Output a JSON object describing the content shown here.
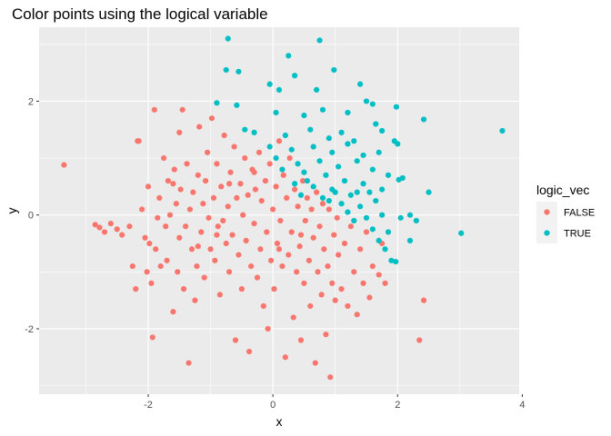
{
  "chart_data": {
    "type": "scatter",
    "title": "Color points using the logical variable",
    "xlabel": "x",
    "ylabel": "y",
    "xlim": [
      -3.75,
      3.95
    ],
    "ylim": [
      -3.15,
      3.3
    ],
    "x_ticks": [
      -2,
      0,
      2,
      4
    ],
    "x_tick_labels": [
      "-2",
      "0",
      "2",
      "4"
    ],
    "y_ticks": [
      -2,
      0,
      2
    ],
    "y_tick_labels": [
      "-2",
      "0",
      "2"
    ],
    "grid": true,
    "legend": {
      "title": "logic_vec",
      "position": "right"
    },
    "colors": {
      "FALSE": "#F8766D",
      "TRUE": "#00BFC4",
      "panel": "#EBEBEB"
    },
    "series": [
      {
        "name": "FALSE",
        "color": "#F8766D",
        "points": [
          [
            -3.35,
            0.88
          ],
          [
            -2.85,
            -0.17
          ],
          [
            -2.78,
            -0.22
          ],
          [
            -2.7,
            -0.3
          ],
          [
            -2.6,
            -0.15
          ],
          [
            -2.5,
            -0.25
          ],
          [
            -2.42,
            -0.35
          ],
          [
            -2.3,
            -0.2
          ],
          [
            -2.25,
            -0.9
          ],
          [
            -2.2,
            -1.3
          ],
          [
            -2.17,
            1.3
          ],
          [
            -2.15,
            1.3
          ],
          [
            -2.1,
            0.1
          ],
          [
            -2.05,
            -0.4
          ],
          [
            -2.02,
            -1.0
          ],
          [
            -2.0,
            0.5
          ],
          [
            -1.98,
            -0.5
          ],
          [
            -1.95,
            -1.2
          ],
          [
            -1.93,
            -2.15
          ],
          [
            -1.9,
            1.85
          ],
          [
            -1.88,
            -0.6
          ],
          [
            -1.85,
            -0.05
          ],
          [
            -1.82,
            0.3
          ],
          [
            -1.8,
            -0.9
          ],
          [
            -1.75,
            1.0
          ],
          [
            -1.72,
            -0.2
          ],
          [
            -1.7,
            -0.8
          ],
          [
            -1.68,
            0.6
          ],
          [
            -1.65,
            0.0
          ],
          [
            -1.6,
            -1.7
          ],
          [
            -1.58,
            0.8
          ],
          [
            -1.55,
            0.2
          ],
          [
            -1.53,
            -1.0
          ],
          [
            -1.5,
            1.45
          ],
          [
            -1.5,
            -0.4
          ],
          [
            -1.48,
            0.45
          ],
          [
            -1.45,
            1.85
          ],
          [
            -1.43,
            -1.3
          ],
          [
            -1.4,
            -0.2
          ],
          [
            -1.38,
            0.9
          ],
          [
            -1.35,
            -2.6
          ],
          [
            -1.33,
            0.1
          ],
          [
            -1.3,
            -0.6
          ],
          [
            -1.28,
            0.4
          ],
          [
            -1.25,
            -1.5
          ],
          [
            -1.22,
            -0.9
          ],
          [
            -1.2,
            0.7
          ],
          [
            -1.18,
            1.55
          ],
          [
            -1.15,
            -0.3
          ],
          [
            -1.12,
            0.2
          ],
          [
            -1.1,
            -1.1
          ],
          [
            -1.08,
            0.6
          ],
          [
            -1.05,
            1.1
          ],
          [
            -1.03,
            -0.05
          ],
          [
            -1.0,
            -0.6
          ],
          [
            -0.98,
            1.7
          ],
          [
            -0.95,
            0.3
          ],
          [
            -0.93,
            -0.8
          ],
          [
            -0.9,
            0.9
          ],
          [
            -0.88,
            -0.2
          ],
          [
            -0.85,
            -1.4
          ],
          [
            -0.83,
            0.5
          ],
          [
            -0.8,
            -0.1
          ],
          [
            -0.78,
            1.4
          ],
          [
            -0.75,
            -0.5
          ],
          [
            -0.72,
            0.15
          ],
          [
            -0.7,
            -1.0
          ],
          [
            -0.68,
            0.75
          ],
          [
            -0.65,
            -0.35
          ],
          [
            -0.62,
            1.2
          ],
          [
            -0.6,
            -2.2
          ],
          [
            -0.58,
            0.3
          ],
          [
            -0.55,
            -0.7
          ],
          [
            -0.52,
            0.55
          ],
          [
            -0.5,
            -1.3
          ],
          [
            -0.48,
            0.0
          ],
          [
            -0.45,
            1.0
          ],
          [
            -0.43,
            -0.45
          ],
          [
            -0.4,
            0.35
          ],
          [
            -0.38,
            -2.4
          ],
          [
            -0.35,
            -0.9
          ],
          [
            -0.33,
            0.8
          ],
          [
            -0.3,
            -0.15
          ],
          [
            -0.28,
            0.45
          ],
          [
            -0.25,
            -1.1
          ],
          [
            -0.22,
            1.1
          ],
          [
            -0.2,
            -0.6
          ],
          [
            -0.18,
            0.25
          ],
          [
            -0.15,
            -1.6
          ],
          [
            -0.12,
            0.6
          ],
          [
            -0.1,
            -0.3
          ],
          [
            -0.08,
            -2.0
          ],
          [
            -0.05,
            0.9
          ],
          [
            -0.03,
            -0.8
          ],
          [
            0.0,
            0.1
          ],
          [
            0.02,
            -1.3
          ],
          [
            0.05,
            0.5
          ],
          [
            0.07,
            -0.5
          ],
          [
            0.1,
            1.3
          ],
          [
            0.12,
            -0.1
          ],
          [
            0.15,
            -0.9
          ],
          [
            0.17,
            0.7
          ],
          [
            0.2,
            -2.5
          ],
          [
            0.22,
            0.3
          ],
          [
            0.25,
            -0.7
          ],
          [
            0.27,
            1.0
          ],
          [
            0.3,
            -0.3
          ],
          [
            0.33,
            -1.8
          ],
          [
            0.35,
            0.45
          ],
          [
            0.38,
            -1.0
          ],
          [
            0.4,
            0.15
          ],
          [
            0.43,
            -0.55
          ],
          [
            0.45,
            -2.2
          ],
          [
            0.48,
            0.6
          ],
          [
            0.5,
            -1.2
          ],
          [
            0.52,
            -0.1
          ],
          [
            0.55,
            0.3
          ],
          [
            0.58,
            -0.8
          ],
          [
            0.6,
            -1.6
          ],
          [
            0.62,
            0.1
          ],
          [
            0.65,
            -0.4
          ],
          [
            0.68,
            -2.6
          ],
          [
            0.7,
            0.4
          ],
          [
            0.72,
            -1.0
          ],
          [
            0.75,
            -0.2
          ],
          [
            0.78,
            -1.4
          ],
          [
            0.8,
            0.2
          ],
          [
            0.82,
            -0.6
          ],
          [
            0.85,
            -2.1
          ],
          [
            0.88,
            -0.9
          ],
          [
            0.9,
            0.1
          ],
          [
            0.92,
            -2.85
          ],
          [
            0.95,
            -1.2
          ],
          [
            0.98,
            -0.35
          ],
          [
            1.0,
            -1.5
          ],
          [
            1.03,
            -0.05
          ],
          [
            1.05,
            -0.7
          ],
          [
            1.1,
            -1.3
          ],
          [
            1.15,
            -0.5
          ],
          [
            1.2,
            -1.6
          ],
          [
            1.25,
            -0.2
          ],
          [
            1.3,
            -1.0
          ],
          [
            1.35,
            -1.75
          ],
          [
            1.4,
            -0.6
          ],
          [
            1.45,
            -1.2
          ],
          [
            1.5,
            -0.3
          ],
          [
            1.55,
            -1.45
          ],
          [
            1.6,
            -0.9
          ],
          [
            1.7,
            -1.05
          ],
          [
            1.75,
            -0.5
          ],
          [
            1.8,
            -1.2
          ],
          [
            2.35,
            -2.2
          ],
          [
            2.42,
            -1.5
          ],
          [
            -1.6,
            0.55
          ],
          [
            -1.2,
            -0.55
          ],
          [
            -0.7,
            0.55
          ],
          [
            -0.3,
            0.75
          ],
          [
            0.1,
            -0.6
          ],
          [
            0.45,
            -0.35
          ],
          [
            -0.9,
            -0.35
          ]
        ]
      },
      {
        "name": "TRUE",
        "color": "#00BFC4",
        "points": [
          [
            -0.72,
            3.1
          ],
          [
            0.75,
            3.07
          ],
          [
            -0.75,
            2.55
          ],
          [
            -0.55,
            2.52
          ],
          [
            0.25,
            2.8
          ],
          [
            0.35,
            2.45
          ],
          [
            0.98,
            2.55
          ],
          [
            1.4,
            2.3
          ],
          [
            -0.05,
            2.3
          ],
          [
            0.1,
            2.2
          ],
          [
            0.7,
            2.2
          ],
          [
            -0.9,
            1.97
          ],
          [
            -0.58,
            1.93
          ],
          [
            0.05,
            1.8
          ],
          [
            0.5,
            1.75
          ],
          [
            0.8,
            1.85
          ],
          [
            1.2,
            1.8
          ],
          [
            1.5,
            2.0
          ],
          [
            1.6,
            1.95
          ],
          [
            1.98,
            1.9
          ],
          [
            2.42,
            1.68
          ],
          [
            3.68,
            1.48
          ],
          [
            -0.45,
            1.5
          ],
          [
            -0.3,
            1.45
          ],
          [
            0.2,
            1.4
          ],
          [
            0.6,
            1.5
          ],
          [
            0.9,
            1.35
          ],
          [
            1.1,
            1.45
          ],
          [
            1.3,
            1.3
          ],
          [
            1.65,
            1.6
          ],
          [
            1.75,
            1.48
          ],
          [
            1.95,
            1.3
          ],
          [
            -0.05,
            1.2
          ],
          [
            0.3,
            1.15
          ],
          [
            0.65,
            1.2
          ],
          [
            0.95,
            1.1
          ],
          [
            1.2,
            1.25
          ],
          [
            1.45,
            1.05
          ],
          [
            1.7,
            1.1
          ],
          [
            2.0,
            1.25
          ],
          [
            0.05,
            1.0
          ],
          [
            0.4,
            0.9
          ],
          [
            0.75,
            0.95
          ],
          [
            1.05,
            0.85
          ],
          [
            1.35,
            0.95
          ],
          [
            1.6,
            0.8
          ],
          [
            1.85,
            0.7
          ],
          [
            0.15,
            0.8
          ],
          [
            0.5,
            0.75
          ],
          [
            0.85,
            0.7
          ],
          [
            1.15,
            0.6
          ],
          [
            1.45,
            0.55
          ],
          [
            2.02,
            0.62
          ],
          [
            2.08,
            0.65
          ],
          [
            0.35,
            0.55
          ],
          [
            0.65,
            0.5
          ],
          [
            0.95,
            0.45
          ],
          [
            1.25,
            0.35
          ],
          [
            1.55,
            0.4
          ],
          [
            1.75,
            0.45
          ],
          [
            2.5,
            0.4
          ],
          [
            0.45,
            0.35
          ],
          [
            0.8,
            0.3
          ],
          [
            1.1,
            0.2
          ],
          [
            1.4,
            0.15
          ],
          [
            1.65,
            0.25
          ],
          [
            2.2,
            0.0
          ],
          [
            0.9,
            0.25
          ],
          [
            1.2,
            0.05
          ],
          [
            1.5,
            -0.05
          ],
          [
            1.75,
            0.0
          ],
          [
            2.05,
            -0.05
          ],
          [
            2.3,
            -0.1
          ],
          [
            1.3,
            -0.1
          ],
          [
            1.6,
            -0.25
          ],
          [
            1.85,
            -0.3
          ],
          [
            2.2,
            -0.45
          ],
          [
            3.02,
            -0.32
          ],
          [
            1.7,
            -0.45
          ],
          [
            1.8,
            -0.6
          ],
          [
            1.9,
            -0.8
          ],
          [
            1.97,
            -0.82
          ],
          [
            1.35,
            0.4
          ],
          [
            1.0,
            0.4
          ],
          [
            0.55,
            0.6
          ]
        ]
      }
    ]
  }
}
